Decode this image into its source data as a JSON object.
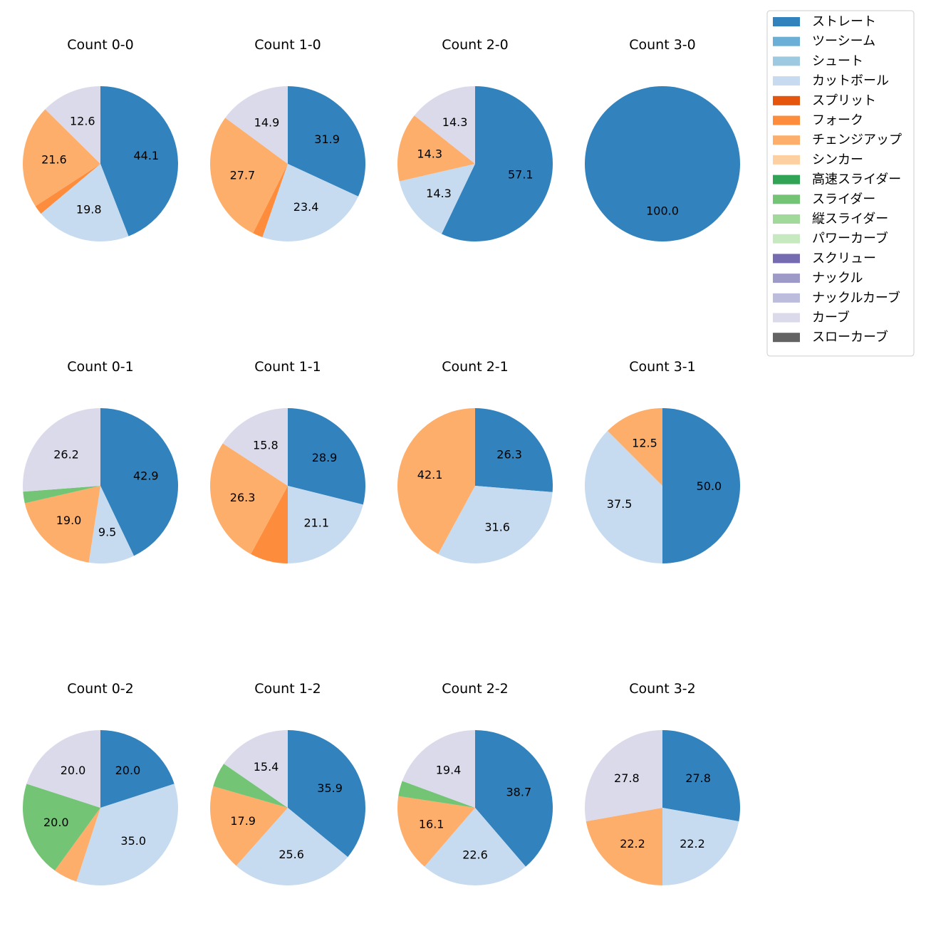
{
  "chart_data": {
    "type": "pie",
    "legend": {
      "placement": "top-right",
      "entries": [
        {
          "name": "ストレート",
          "color": "#3182bd"
        },
        {
          "name": "ツーシーム",
          "color": "#6baed6"
        },
        {
          "name": "シュート",
          "color": "#9ecae1"
        },
        {
          "name": "カットボール",
          "color": "#c6dbef"
        },
        {
          "name": "スプリット",
          "color": "#e6550d"
        },
        {
          "name": "フォーク",
          "color": "#fd8d3c"
        },
        {
          "name": "チェンジアップ",
          "color": "#fdae6b"
        },
        {
          "name": "シンカー",
          "color": "#fdd0a2"
        },
        {
          "name": "高速スライダー",
          "color": "#31a354"
        },
        {
          "name": "スライダー",
          "color": "#74c476"
        },
        {
          "name": "縦スライダー",
          "color": "#a1d99b"
        },
        {
          "name": "パワーカーブ",
          "color": "#c7e9c0"
        },
        {
          "name": "スクリュー",
          "color": "#756bb1"
        },
        {
          "name": "ナックル",
          "color": "#9e9ac8"
        },
        {
          "name": "ナックルカーブ",
          "color": "#bcbddc"
        },
        {
          "name": "カーブ",
          "color": "#dadaeb"
        },
        {
          "name": "スローカーブ",
          "color": "#636363"
        }
      ]
    },
    "charts": [
      {
        "title": "Count 0-0",
        "slices": [
          {
            "pitch": "ストレート",
            "value": 44.1,
            "label": "44.1"
          },
          {
            "pitch": "カットボール",
            "value": 19.8,
            "label": "19.8"
          },
          {
            "pitch": "フォーク",
            "value": 1.9,
            "label": ""
          },
          {
            "pitch": "チェンジアップ",
            "value": 21.6,
            "label": "21.6"
          },
          {
            "pitch": "カーブ",
            "value": 12.6,
            "label": "12.6"
          }
        ]
      },
      {
        "title": "Count 1-0",
        "slices": [
          {
            "pitch": "ストレート",
            "value": 31.9,
            "label": "31.9"
          },
          {
            "pitch": "カットボール",
            "value": 23.4,
            "label": "23.4"
          },
          {
            "pitch": "フォーク",
            "value": 2.1,
            "label": ""
          },
          {
            "pitch": "チェンジアップ",
            "value": 27.7,
            "label": "27.7"
          },
          {
            "pitch": "カーブ",
            "value": 14.9,
            "label": "14.9"
          }
        ]
      },
      {
        "title": "Count 2-0",
        "slices": [
          {
            "pitch": "ストレート",
            "value": 57.1,
            "label": "57.1"
          },
          {
            "pitch": "カットボール",
            "value": 14.3,
            "label": "14.3"
          },
          {
            "pitch": "チェンジアップ",
            "value": 14.3,
            "label": "14.3"
          },
          {
            "pitch": "カーブ",
            "value": 14.3,
            "label": "14.3"
          }
        ]
      },
      {
        "title": "Count 3-0",
        "slices": [
          {
            "pitch": "ストレート",
            "value": 100.0,
            "label": "100.0"
          }
        ]
      },
      {
        "title": "Count 0-1",
        "slices": [
          {
            "pitch": "ストレート",
            "value": 42.9,
            "label": "42.9"
          },
          {
            "pitch": "カットボール",
            "value": 9.5,
            "label": "9.5"
          },
          {
            "pitch": "チェンジアップ",
            "value": 19.0,
            "label": "19.0"
          },
          {
            "pitch": "スライダー",
            "value": 2.4,
            "label": ""
          },
          {
            "pitch": "カーブ",
            "value": 26.2,
            "label": "26.2"
          }
        ]
      },
      {
        "title": "Count 1-1",
        "slices": [
          {
            "pitch": "ストレート",
            "value": 28.9,
            "label": "28.9"
          },
          {
            "pitch": "カットボール",
            "value": 21.1,
            "label": "21.1"
          },
          {
            "pitch": "フォーク",
            "value": 7.9,
            "label": ""
          },
          {
            "pitch": "チェンジアップ",
            "value": 26.3,
            "label": "26.3"
          },
          {
            "pitch": "カーブ",
            "value": 15.8,
            "label": "15.8"
          }
        ]
      },
      {
        "title": "Count 2-1",
        "slices": [
          {
            "pitch": "ストレート",
            "value": 26.3,
            "label": "26.3"
          },
          {
            "pitch": "カットボール",
            "value": 31.6,
            "label": "31.6"
          },
          {
            "pitch": "チェンジアップ",
            "value": 42.1,
            "label": "42.1"
          }
        ]
      },
      {
        "title": "Count 3-1",
        "slices": [
          {
            "pitch": "ストレート",
            "value": 50.0,
            "label": "50.0"
          },
          {
            "pitch": "カットボール",
            "value": 37.5,
            "label": "37.5"
          },
          {
            "pitch": "チェンジアップ",
            "value": 12.5,
            "label": "12.5"
          }
        ]
      },
      {
        "title": "Count 0-2",
        "slices": [
          {
            "pitch": "ストレート",
            "value": 20.0,
            "label": "20.0"
          },
          {
            "pitch": "カットボール",
            "value": 35.0,
            "label": "35.0"
          },
          {
            "pitch": "チェンジアップ",
            "value": 5.0,
            "label": ""
          },
          {
            "pitch": "スライダー",
            "value": 20.0,
            "label": "20.0"
          },
          {
            "pitch": "カーブ",
            "value": 20.0,
            "label": "20.0"
          }
        ]
      },
      {
        "title": "Count 1-2",
        "slices": [
          {
            "pitch": "ストレート",
            "value": 35.9,
            "label": "35.9"
          },
          {
            "pitch": "カットボール",
            "value": 25.6,
            "label": "25.6"
          },
          {
            "pitch": "チェンジアップ",
            "value": 17.9,
            "label": "17.9"
          },
          {
            "pitch": "スライダー",
            "value": 5.1,
            "label": ""
          },
          {
            "pitch": "カーブ",
            "value": 15.4,
            "label": "15.4"
          }
        ]
      },
      {
        "title": "Count 2-2",
        "slices": [
          {
            "pitch": "ストレート",
            "value": 38.7,
            "label": "38.7"
          },
          {
            "pitch": "カットボール",
            "value": 22.6,
            "label": "22.6"
          },
          {
            "pitch": "チェンジアップ",
            "value": 16.1,
            "label": "16.1"
          },
          {
            "pitch": "スライダー",
            "value": 3.2,
            "label": ""
          },
          {
            "pitch": "カーブ",
            "value": 19.4,
            "label": "19.4"
          }
        ]
      },
      {
        "title": "Count 3-2",
        "slices": [
          {
            "pitch": "ストレート",
            "value": 27.8,
            "label": "27.8"
          },
          {
            "pitch": "カットボール",
            "value": 22.2,
            "label": "22.2"
          },
          {
            "pitch": "チェンジアップ",
            "value": 22.2,
            "label": "22.2"
          },
          {
            "pitch": "カーブ",
            "value": 27.8,
            "label": "27.8"
          }
        ]
      }
    ]
  }
}
